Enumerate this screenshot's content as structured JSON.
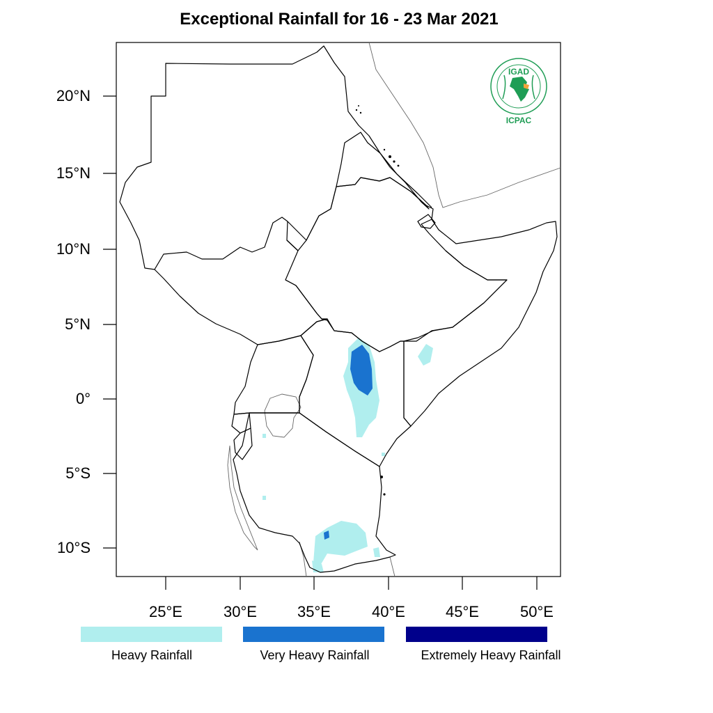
{
  "title": "Exceptional Rainfall for 16 - 23 Mar 2021",
  "axes": {
    "lat_ticks": [
      "20°N",
      "15°N",
      "10°N",
      "5°N",
      "0°",
      "5°S",
      "10°S"
    ],
    "lon_ticks": [
      "25°E",
      "30°E",
      "35°E",
      "40°E",
      "45°E",
      "50°E"
    ]
  },
  "legend": [
    {
      "label": "Heavy Rainfall",
      "color": "#b0eeee"
    },
    {
      "label": "Very Heavy Rainfall",
      "color": "#1a73cf"
    },
    {
      "label": "Extremely Heavy Rainfall",
      "color": "#00008b"
    }
  ],
  "logo": {
    "top_text": "IGAD",
    "bottom_text": "ICPAC",
    "color": "#1f9d55",
    "accent": "#f2a33a"
  },
  "colors": {
    "heavy": "#b0eeee",
    "very_heavy": "#1a73cf",
    "border": "#000000",
    "coast": "#666666"
  }
}
